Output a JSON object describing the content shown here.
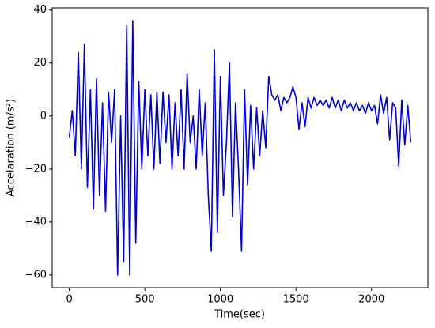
{
  "chart_data": {
    "type": "line",
    "xlabel": "Time(sec)",
    "ylabel": "Accelaration (m/s²)",
    "x": [
      0,
      20,
      40,
      60,
      80,
      100,
      120,
      140,
      160,
      180,
      200,
      220,
      240,
      260,
      280,
      300,
      320,
      340,
      360,
      380,
      400,
      420,
      440,
      460,
      480,
      500,
      520,
      540,
      560,
      580,
      600,
      620,
      640,
      660,
      680,
      700,
      720,
      740,
      760,
      780,
      800,
      820,
      840,
      860,
      880,
      900,
      920,
      940,
      960,
      980,
      1000,
      1020,
      1040,
      1060,
      1080,
      1100,
      1120,
      1140,
      1160,
      1180,
      1200,
      1220,
      1240,
      1260,
      1280,
      1300,
      1320,
      1340,
      1360,
      1380,
      1400,
      1420,
      1440,
      1460,
      1480,
      1500,
      1520,
      1540,
      1560,
      1580,
      1600,
      1620,
      1640,
      1660,
      1680,
      1700,
      1720,
      1740,
      1760,
      1780,
      1800,
      1820,
      1840,
      1860,
      1880,
      1900,
      1920,
      1940,
      1960,
      1980,
      2000,
      2020,
      2040,
      2060,
      2080,
      2100,
      2120,
      2140,
      2160,
      2180,
      2200,
      2220,
      2240,
      2260
    ],
    "series": [
      {
        "color": "#0000cd",
        "values": [
          -8,
          2,
          -15,
          24,
          -20,
          27,
          -27,
          10,
          -35,
          14,
          -30,
          5,
          -36,
          9,
          -10,
          10,
          -60,
          0,
          -55,
          34,
          -60,
          36,
          -48,
          13,
          -20,
          10,
          -15,
          8,
          -20,
          9,
          -18,
          9,
          -10,
          8,
          -20,
          5,
          -15,
          10,
          -20,
          16,
          -10,
          0,
          -20,
          10,
          -15,
          5,
          -30,
          -51,
          25,
          -44,
          15,
          -30,
          -10,
          20,
          -38,
          5,
          -20,
          -51,
          10,
          -26,
          4,
          -20,
          3,
          -15,
          2,
          -12,
          15,
          8,
          6,
          8,
          2,
          7,
          5,
          7,
          11,
          7,
          -5,
          5,
          -4,
          7,
          3,
          7,
          4,
          6,
          4,
          6,
          3,
          7,
          3,
          6,
          2,
          6,
          3,
          5,
          2,
          5,
          2,
          4,
          1,
          5,
          2,
          4,
          -3,
          8,
          1,
          7,
          -9,
          5,
          3,
          -19,
          6,
          -11,
          4,
          -10
        ]
      }
    ],
    "xlim": [
      -113,
      2373
    ],
    "ylim": [
      -64.8,
      40.8
    ],
    "xticks": [
      0,
      500,
      1000,
      1500,
      2000
    ],
    "yticks": [
      {
        "value": -60,
        "label": "−60"
      },
      {
        "value": -40,
        "label": "−40"
      },
      {
        "value": -20,
        "label": "−20"
      },
      0,
      20,
      40
    ]
  }
}
